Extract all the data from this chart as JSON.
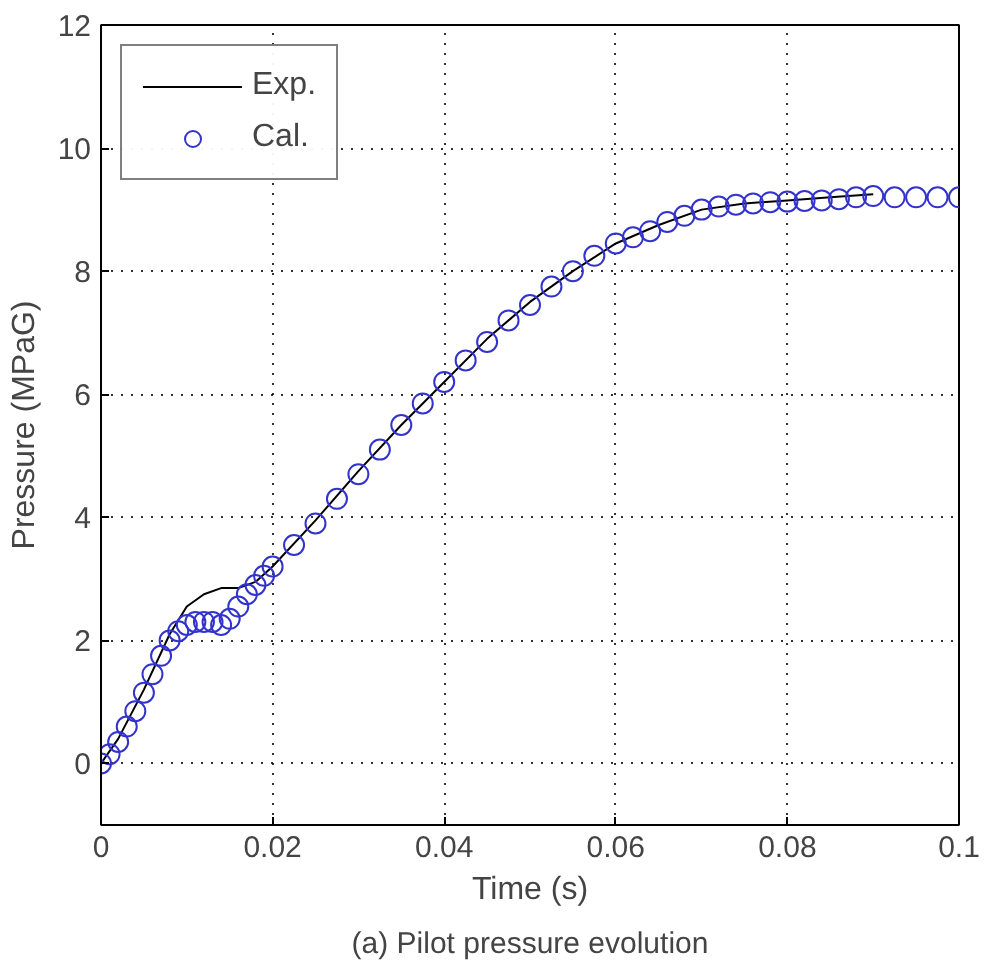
{
  "chart_data": {
    "type": "line",
    "xlabel": "Time (s)",
    "ylabel": "Pressure (MPaG)",
    "annotations": [
      "(a) Pilot pressure evolution"
    ],
    "xlim": [
      0,
      0.1
    ],
    "ylim": [
      -1,
      12
    ],
    "xticks": [
      0,
      0.02,
      0.04,
      0.06,
      0.08,
      0.1
    ],
    "yticks": [
      0,
      2,
      4,
      6,
      8,
      10,
      12
    ],
    "grid": true,
    "legend": "top left",
    "series": [
      {
        "name": "Exp.",
        "color": "#000000",
        "marker": "none",
        "line_style": "solid",
        "x": [
          0,
          0.002,
          0.005,
          0.008,
          0.01,
          0.012,
          0.014,
          0.016,
          0.018,
          0.02,
          0.025,
          0.03,
          0.035,
          0.04,
          0.045,
          0.05,
          0.055,
          0.06,
          0.065,
          0.07,
          0.075,
          0.08,
          0.085,
          0.09
        ],
        "values": [
          0,
          0.4,
          1.2,
          2.1,
          2.55,
          2.75,
          2.85,
          2.85,
          2.95,
          3.2,
          3.95,
          4.75,
          5.5,
          6.2,
          6.9,
          7.5,
          8.0,
          8.45,
          8.75,
          9.0,
          9.1,
          9.15,
          9.2,
          9.25
        ]
      },
      {
        "name": "Cal.",
        "type": "scatter",
        "color": "#3333cc",
        "marker": "circle",
        "x": [
          0,
          0.001,
          0.002,
          0.003,
          0.004,
          0.005,
          0.006,
          0.007,
          0.008,
          0.009,
          0.01,
          0.011,
          0.012,
          0.013,
          0.014,
          0.015,
          0.016,
          0.017,
          0.018,
          0.019,
          0.02,
          0.0225,
          0.025,
          0.0275,
          0.03,
          0.0325,
          0.035,
          0.0375,
          0.04,
          0.0425,
          0.045,
          0.0475,
          0.05,
          0.0525,
          0.055,
          0.0575,
          0.06,
          0.062,
          0.064,
          0.066,
          0.068,
          0.07,
          0.072,
          0.074,
          0.076,
          0.078,
          0.08,
          0.082,
          0.084,
          0.086,
          0.088,
          0.09,
          0.0925,
          0.095,
          0.0975,
          0.1
        ],
        "values": [
          0,
          0.15,
          0.35,
          0.6,
          0.85,
          1.15,
          1.45,
          1.75,
          2.0,
          2.15,
          2.25,
          2.3,
          2.3,
          2.3,
          2.25,
          2.35,
          2.55,
          2.75,
          2.9,
          3.05,
          3.2,
          3.55,
          3.9,
          4.3,
          4.7,
          5.1,
          5.5,
          5.85,
          6.2,
          6.55,
          6.85,
          7.2,
          7.45,
          7.75,
          8.0,
          8.25,
          8.45,
          8.55,
          8.65,
          8.8,
          8.9,
          9.0,
          9.05,
          9.08,
          9.1,
          9.12,
          9.13,
          9.14,
          9.15,
          9.17,
          9.2,
          9.22,
          9.2,
          9.2,
          9.2,
          9.2
        ]
      }
    ]
  }
}
